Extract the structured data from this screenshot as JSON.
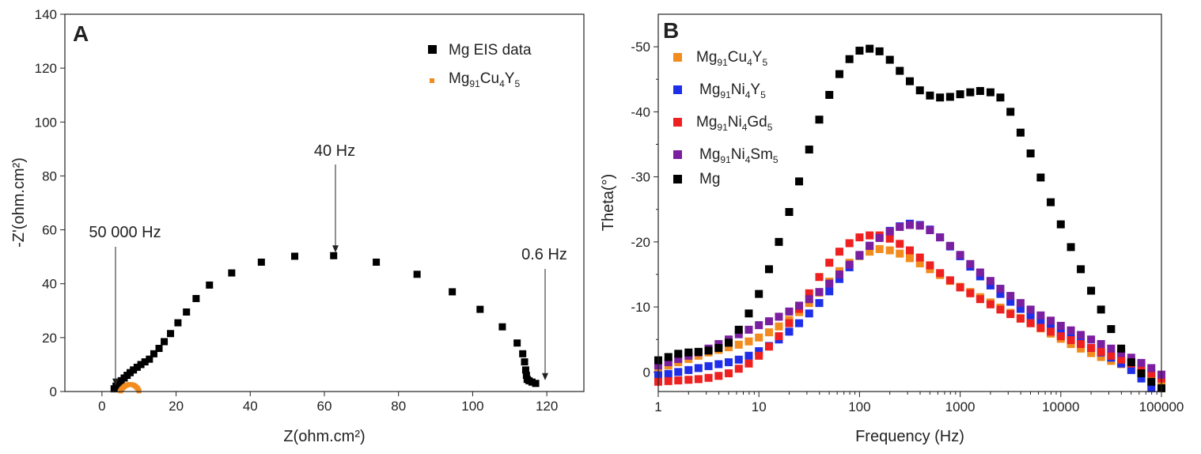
{
  "chart_data": [
    {
      "panel_label": "A",
      "type": "scatter",
      "xlabel": "Z(ohm.cm²)",
      "ylabel": "-Z'(ohm.cm²)",
      "xlim": [
        -10,
        130
      ],
      "ylim": [
        0,
        140
      ],
      "x_ticks": [
        0,
        20,
        40,
        60,
        80,
        100,
        120
      ],
      "y_ticks": [
        0,
        20,
        40,
        60,
        80,
        100,
        120,
        140
      ],
      "grid": false,
      "legend_position": "top-right",
      "series": [
        {
          "name": "Mg EIS data",
          "color": "#000000",
          "marker": "square",
          "x": [
            3.3,
            3.8,
            4.5,
            5.2,
            6.0,
            6.8,
            7.6,
            8.5,
            9.5,
            10.5,
            11.6,
            12.8,
            14.0,
            15.4,
            16.8,
            18.5,
            20.5,
            22.8,
            25.4,
            29.0,
            35.0,
            43.0,
            52.0,
            62.5,
            74.0,
            85.0,
            94.5,
            102.0,
            108.0,
            112.0,
            113.5,
            114.0,
            114.3,
            114.5,
            114.7,
            115.2,
            116.0,
            117.0
          ],
          "y": [
            1.0,
            2.0,
            3.0,
            4.0,
            5.0,
            6.0,
            7.0,
            8.0,
            9.0,
            10.0,
            11.0,
            12.0,
            14.0,
            16.0,
            18.5,
            21.5,
            25.5,
            29.5,
            34.5,
            39.5,
            44.0,
            48.0,
            50.2,
            50.4,
            48.0,
            43.5,
            37.0,
            30.5,
            24.0,
            18.0,
            14.0,
            11.0,
            8.0,
            6.0,
            4.5,
            4.0,
            3.5,
            3.0
          ]
        },
        {
          "name": "Mg",
          "name_sub": "91",
          "name_parts": [
            "Cu",
            "4",
            "Y",
            "5"
          ],
          "color": "#f28c1e",
          "marker": "small-square",
          "x": [
            5.0,
            5.2,
            5.4,
            5.7,
            6.0,
            6.3,
            6.6,
            7.0,
            7.4,
            7.8,
            8.2,
            8.6,
            9.0,
            9.3,
            9.6,
            9.8,
            10.0
          ],
          "y": [
            0.2,
            0.6,
            1.0,
            1.4,
            1.8,
            2.1,
            2.3,
            2.5,
            2.6,
            2.6,
            2.5,
            2.3,
            2.0,
            1.6,
            1.2,
            0.7,
            0.2
          ]
        }
      ],
      "annotations": [
        {
          "text": "50 000 Hz",
          "x": 3.3,
          "y": 1.0
        },
        {
          "text": "40 Hz",
          "x": 62.5,
          "y": 50.4
        },
        {
          "text": "0.6 Hz",
          "x": 120,
          "y": 3.0
        }
      ]
    },
    {
      "panel_label": "B",
      "type": "scatter",
      "xlabel": "Frequency (Hz)",
      "ylabel": "Theta(°)",
      "xscale": "log",
      "xlim": [
        1,
        100000
      ],
      "ylim": [
        3,
        -55
      ],
      "x_ticks": [
        1,
        10,
        100,
        1000,
        10000,
        100000
      ],
      "x_tick_labels": [
        "1",
        "10",
        "100",
        "1000",
        "10000",
        "100000"
      ],
      "y_ticks": [
        0,
        -10,
        -20,
        -30,
        -40,
        -50
      ],
      "y_tick_labels": [
        "0",
        "-10",
        "-20",
        "-30",
        "-40",
        "-50"
      ],
      "grid": false,
      "legend_position": "top-left",
      "freq": [
        1,
        1.26,
        1.58,
        2,
        2.51,
        3.16,
        3.98,
        5.01,
        6.31,
        7.94,
        10,
        12.6,
        15.8,
        20,
        25.1,
        31.6,
        39.8,
        50.1,
        63.1,
        79.4,
        100,
        126,
        158,
        200,
        251,
        316,
        398,
        501,
        631,
        794,
        1000,
        1260,
        1580,
        2000,
        2510,
        3160,
        3980,
        5010,
        6310,
        7940,
        10000,
        12600,
        15800,
        20000,
        25100,
        31600,
        39800,
        50100,
        63100,
        79400,
        100000
      ],
      "series": [
        {
          "name": "Mg",
          "name_parts": [
            "91",
            "Cu",
            "4",
            "Y",
            "5"
          ],
          "color": "#f28c1e",
          "values": [
            -0.5,
            -1.0,
            -1.5,
            -2.0,
            -2.5,
            -3.0,
            -3.4,
            -3.8,
            -4.2,
            -4.7,
            -5.3,
            -6.1,
            -7.0,
            -8.0,
            -9.2,
            -10.6,
            -12.2,
            -13.9,
            -15.5,
            -16.8,
            -17.8,
            -18.5,
            -18.9,
            -18.7,
            -18.2,
            -17.5,
            -16.7,
            -15.8,
            -14.9,
            -14.0,
            -13.1,
            -12.3,
            -11.5,
            -10.7,
            -9.9,
            -9.1,
            -8.3,
            -7.5,
            -6.7,
            -5.9,
            -5.1,
            -4.3,
            -3.6,
            -2.9,
            -2.3,
            -1.7,
            -1.2,
            -0.6,
            0.2,
            1.0,
            2.0
          ]
        },
        {
          "name": "Mg",
          "name_parts": [
            "91",
            "Ni",
            "4",
            "Y",
            "5"
          ],
          "color": "#1f2ee8",
          "values": [
            0.5,
            0.3,
            0.0,
            -0.3,
            -0.6,
            -0.9,
            -1.2,
            -1.5,
            -1.9,
            -2.5,
            -3.2,
            -4.0,
            -5.0,
            -6.2,
            -7.5,
            -9.0,
            -10.6,
            -12.4,
            -14.3,
            -16.1,
            -17.9,
            -19.4,
            -20.7,
            -21.7,
            -22.4,
            -22.8,
            -22.6,
            -21.9,
            -20.7,
            -19.3,
            -17.8,
            -16.2,
            -14.7,
            -13.3,
            -12.0,
            -10.8,
            -9.7,
            -8.7,
            -7.8,
            -6.9,
            -6.0,
            -5.2,
            -4.5,
            -3.7,
            -3.0,
            -2.2,
            -1.3,
            -0.3,
            1.0,
            2.5,
            3.5
          ]
        },
        {
          "name": "Mg",
          "name_parts": [
            "91",
            "Ni",
            "4",
            "Gd",
            "5"
          ],
          "color": "#ee2020",
          "values": [
            1.5,
            1.4,
            1.3,
            1.2,
            1.1,
            0.9,
            0.6,
            0.2,
            -0.5,
            -1.3,
            -2.5,
            -3.9,
            -5.5,
            -7.5,
            -9.7,
            -12.1,
            -14.6,
            -16.8,
            -18.5,
            -19.8,
            -20.7,
            -21.0,
            -21.0,
            -20.5,
            -19.7,
            -18.7,
            -17.6,
            -16.4,
            -15.2,
            -14.1,
            -13.0,
            -12.1,
            -11.2,
            -10.4,
            -9.6,
            -8.9,
            -8.2,
            -7.5,
            -6.8,
            -6.2,
            -5.5,
            -4.9,
            -4.3,
            -3.7,
            -3.1,
            -2.5,
            -1.9,
            -1.3,
            -0.6,
            0.2,
            1.0
          ]
        },
        {
          "name": "Mg",
          "name_parts": [
            "91",
            "Ni",
            "4",
            "Sm",
            "5"
          ],
          "color": "#7a1fa0",
          "values": [
            -1.0,
            -1.5,
            -2.0,
            -2.5,
            -3.0,
            -3.6,
            -4.3,
            -5.0,
            -5.8,
            -6.5,
            -7.2,
            -7.8,
            -8.5,
            -9.3,
            -10.2,
            -11.2,
            -12.3,
            -13.6,
            -15.0,
            -16.5,
            -18.0,
            -19.4,
            -20.6,
            -21.6,
            -22.3,
            -22.6,
            -22.5,
            -21.8,
            -20.7,
            -19.4,
            -18.0,
            -16.6,
            -15.3,
            -14.0,
            -12.8,
            -11.7,
            -10.6,
            -9.6,
            -8.7,
            -7.9,
            -7.1,
            -6.4,
            -5.7,
            -5.0,
            -4.3,
            -3.6,
            -2.9,
            -2.2,
            -1.4,
            -0.6,
            0.4
          ]
        },
        {
          "name": "Mg",
          "color": "#000000",
          "values": [
            -1.8,
            -2.3,
            -2.8,
            -3.0,
            -3.1,
            -3.3,
            -3.7,
            -4.5,
            -6.5,
            -9.0,
            -12.0,
            -15.8,
            -20.0,
            -24.6,
            -29.3,
            -34.2,
            -38.8,
            -42.6,
            -45.8,
            -48.1,
            -49.4,
            -49.7,
            -49.3,
            -48.0,
            -46.3,
            -44.7,
            -43.3,
            -42.5,
            -42.2,
            -42.3,
            -42.7,
            -43.0,
            -43.2,
            -43.0,
            -42.2,
            -40.0,
            -36.8,
            -33.6,
            -29.9,
            -26.1,
            -22.7,
            -19.2,
            -15.8,
            -12.5,
            -9.6,
            -6.6,
            -3.6,
            -1.5,
            0.2,
            1.5,
            2.5
          ]
        }
      ]
    }
  ]
}
